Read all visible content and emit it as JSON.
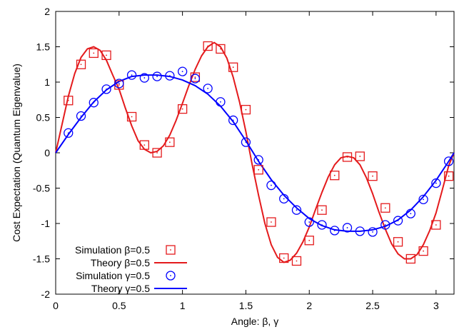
{
  "chart_data": {
    "type": "line",
    "xlabel": "Angle: β, γ",
    "ylabel": "Cost Expectation (Quantum Eigenvalue)",
    "xlim": [
      0,
      3.1416
    ],
    "ylim": [
      -2,
      2
    ],
    "x_ticks": [
      "0",
      "0.5",
      "1",
      "1.5",
      "2",
      "2.5",
      "3"
    ],
    "y_ticks": [
      "2",
      "1.5",
      "1",
      "0.5",
      "0",
      "-0.5",
      "-1",
      "-1.5",
      "-2"
    ],
    "grid": false,
    "legend_position": "bottom-left",
    "series": [
      {
        "name": "Simulation β=0.5",
        "kind": "points",
        "marker": "square",
        "color": "#e41a1c",
        "x": [
          0.1,
          0.2,
          0.3,
          0.4,
          0.5,
          0.6,
          0.7,
          0.8,
          0.9,
          1.0,
          1.1,
          1.2,
          1.3,
          1.4,
          1.5,
          1.6,
          1.7,
          1.8,
          1.9,
          2.0,
          2.1,
          2.2,
          2.3,
          2.4,
          2.5,
          2.6,
          2.7,
          2.8,
          2.9,
          3.0,
          3.1
        ],
        "y": [
          0.74,
          1.25,
          1.41,
          1.38,
          0.96,
          0.51,
          0.11,
          0.0,
          0.15,
          0.62,
          1.07,
          1.51,
          1.47,
          1.21,
          0.61,
          -0.24,
          -0.98,
          -1.49,
          -1.53,
          -1.24,
          -0.81,
          -0.32,
          -0.06,
          -0.05,
          -0.33,
          -0.78,
          -1.26,
          -1.5,
          -1.39,
          -1.02,
          -0.33
        ]
      },
      {
        "name": "Theory β=0.5",
        "kind": "line",
        "color": "#e41a1c",
        "x": [
          0.0,
          0.05,
          0.1,
          0.15,
          0.2,
          0.25,
          0.3,
          0.35,
          0.4,
          0.45,
          0.5,
          0.55,
          0.6,
          0.65,
          0.7,
          0.75,
          0.8,
          0.85,
          0.9,
          0.95,
          1.0,
          1.05,
          1.1,
          1.15,
          1.2,
          1.25,
          1.3,
          1.35,
          1.4,
          1.45,
          1.5,
          1.55,
          1.6,
          1.65,
          1.7,
          1.75,
          1.8,
          1.85,
          1.9,
          1.95,
          2.0,
          2.05,
          2.1,
          2.15,
          2.2,
          2.25,
          2.3,
          2.35,
          2.4,
          2.45,
          2.5,
          2.55,
          2.6,
          2.65,
          2.7,
          2.75,
          2.8,
          2.85,
          2.9,
          2.95,
          3.0,
          3.05,
          3.1,
          3.1416
        ],
        "y": [
          0.0,
          0.4,
          0.8,
          1.12,
          1.35,
          1.47,
          1.5,
          1.45,
          1.31,
          1.1,
          0.9,
          0.63,
          0.38,
          0.17,
          0.05,
          0.0,
          0.02,
          0.1,
          0.25,
          0.46,
          0.7,
          0.95,
          1.18,
          1.37,
          1.5,
          1.56,
          1.5,
          1.34,
          1.07,
          0.72,
          0.3,
          -0.17,
          -0.6,
          -1.0,
          -1.3,
          -1.48,
          -1.55,
          -1.52,
          -1.42,
          -1.26,
          -1.05,
          -0.8,
          -0.56,
          -0.34,
          -0.17,
          -0.07,
          -0.05,
          -0.07,
          -0.17,
          -0.35,
          -0.58,
          -0.84,
          -1.08,
          -1.29,
          -1.43,
          -1.5,
          -1.5,
          -1.44,
          -1.3,
          -1.1,
          -0.85,
          -0.52,
          -0.18,
          0.0
        ]
      },
      {
        "name": "Simulation γ=0.5",
        "kind": "points",
        "marker": "circle",
        "color": "#0000ff",
        "x": [
          0.1,
          0.2,
          0.3,
          0.4,
          0.5,
          0.6,
          0.7,
          0.8,
          0.9,
          1.0,
          1.1,
          1.2,
          1.3,
          1.4,
          1.5,
          1.6,
          1.7,
          1.8,
          1.9,
          2.0,
          2.1,
          2.2,
          2.3,
          2.4,
          2.5,
          2.6,
          2.7,
          2.8,
          2.9,
          3.0,
          3.1
        ],
        "y": [
          0.28,
          0.52,
          0.71,
          0.9,
          0.98,
          1.1,
          1.06,
          1.08,
          1.09,
          1.15,
          1.05,
          0.91,
          0.72,
          0.46,
          0.15,
          -0.1,
          -0.46,
          -0.65,
          -0.81,
          -0.98,
          -1.02,
          -1.1,
          -1.06,
          -1.11,
          -1.12,
          -1.02,
          -0.96,
          -0.86,
          -0.66,
          -0.43,
          -0.12
        ]
      },
      {
        "name": "Theory γ=0.5",
        "kind": "line",
        "color": "#0000ff",
        "x": [
          0.0,
          0.1,
          0.2,
          0.3,
          0.4,
          0.5,
          0.6,
          0.7,
          0.8,
          0.9,
          1.0,
          1.1,
          1.2,
          1.3,
          1.4,
          1.5,
          1.6,
          1.7,
          1.8,
          1.9,
          2.0,
          2.1,
          2.2,
          2.3,
          2.4,
          2.5,
          2.6,
          2.7,
          2.8,
          2.9,
          3.0,
          3.1,
          3.1416
        ],
        "y": [
          0.0,
          0.26,
          0.5,
          0.72,
          0.89,
          1.01,
          1.08,
          1.1,
          1.1,
          1.08,
          1.03,
          0.95,
          0.83,
          0.66,
          0.44,
          0.17,
          -0.12,
          -0.38,
          -0.6,
          -0.78,
          -0.93,
          -1.03,
          -1.09,
          -1.11,
          -1.11,
          -1.09,
          -1.04,
          -0.95,
          -0.81,
          -0.62,
          -0.39,
          -0.12,
          0.0
        ]
      }
    ]
  }
}
